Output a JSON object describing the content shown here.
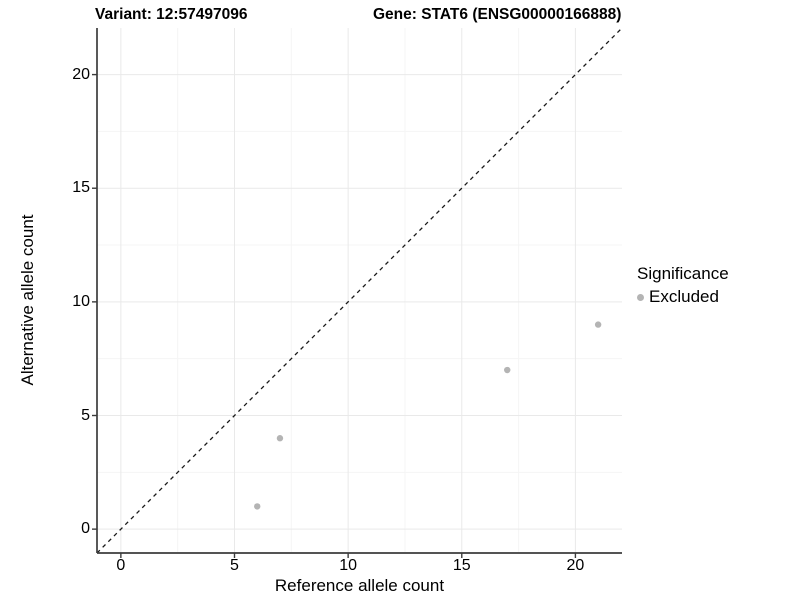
{
  "titles": {
    "variant": "Variant: 12:57497096",
    "gene": "Gene: STAT6 (ENSG00000166888)"
  },
  "axes": {
    "x_label": "Reference allele count",
    "y_label": "Alternative allele count"
  },
  "legend": {
    "title": "Significance",
    "items": [
      {
        "label": "Excluded",
        "color": "#b4b4b4"
      }
    ]
  },
  "colors": {
    "background": "#ffffff",
    "grid_major": "#e9e9e9",
    "grid_minor": "#f5f5f5",
    "axis": "#3c3c3c",
    "point": "#b4b4b4",
    "diagonal": "#1a1a1a",
    "text": "#000000"
  },
  "chart_data": {
    "type": "scatter",
    "title": "Variant: 12:57497096  /  Gene: STAT6 (ENSG00000166888)",
    "xlabel": "Reference allele count",
    "ylabel": "Alternative allele count",
    "xlim": [
      -1.05,
      22.05
    ],
    "ylim": [
      -1.05,
      22.05
    ],
    "xticks": [
      0,
      5,
      10,
      15,
      20
    ],
    "yticks": [
      0,
      5,
      10,
      15,
      20
    ],
    "minor_ticks": [
      2.5,
      7.5,
      12.5,
      17.5
    ],
    "grid": true,
    "legend_position": "right",
    "legend_title": "Significance",
    "series": [
      {
        "name": "Excluded",
        "color": "#b4b4b4",
        "points": [
          [
            6,
            1
          ],
          [
            7,
            4
          ],
          [
            17,
            7
          ],
          [
            21,
            9
          ]
        ]
      }
    ],
    "reference_line": {
      "type": "identity y=x",
      "style": "dashed",
      "color": "#1a1a1a"
    }
  }
}
